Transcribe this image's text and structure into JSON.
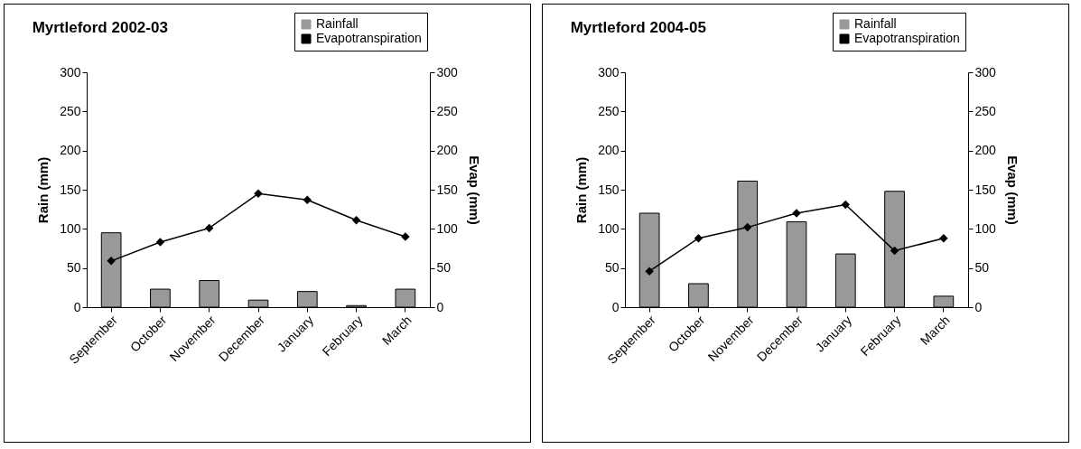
{
  "chart_data": [
    {
      "type": "bar",
      "title": "Myrtleford 2002-03",
      "categories": [
        "September",
        "October",
        "November",
        "December",
        "January",
        "February",
        "March"
      ],
      "ylabel": "Rain (mm)",
      "y2label": "Evap (mm)",
      "ylim": [
        0,
        300
      ],
      "yticks": [
        0,
        50,
        100,
        150,
        200,
        250,
        300
      ],
      "y2lim": [
        0,
        300
      ],
      "y2ticks": [
        0,
        50,
        100,
        150,
        200,
        250,
        300
      ],
      "legend": "top right",
      "marker": "diamond",
      "series": [
        {
          "name": "Rainfall",
          "color": "#999999",
          "values": [
            95,
            23,
            34,
            9,
            20,
            2,
            23
          ]
        },
        {
          "name": "Evapotranspiration",
          "type": "line",
          "axis": "y2",
          "color": "#000000",
          "values": [
            59,
            83,
            101,
            145,
            137,
            111,
            90
          ]
        }
      ]
    },
    {
      "type": "bar",
      "title": "Myrtleford 2004-05",
      "categories": [
        "September",
        "October",
        "November",
        "December",
        "January",
        "February",
        "March"
      ],
      "ylabel": "Rain (mm)",
      "y2label": "Evap (mm)",
      "ylim": [
        0,
        300
      ],
      "yticks": [
        0,
        50,
        100,
        150,
        200,
        250,
        300
      ],
      "y2lim": [
        0,
        300
      ],
      "y2ticks": [
        0,
        50,
        100,
        150,
        200,
        250,
        300
      ],
      "legend": "top right",
      "marker": "diamond",
      "series": [
        {
          "name": "Rainfall",
          "color": "#999999",
          "values": [
            120,
            30,
            161,
            109,
            68,
            148,
            14
          ]
        },
        {
          "name": "Evapotranspiration",
          "type": "line",
          "axis": "y2",
          "color": "#000000",
          "values": [
            46,
            88,
            102,
            120,
            131,
            72,
            88
          ]
        }
      ]
    }
  ]
}
